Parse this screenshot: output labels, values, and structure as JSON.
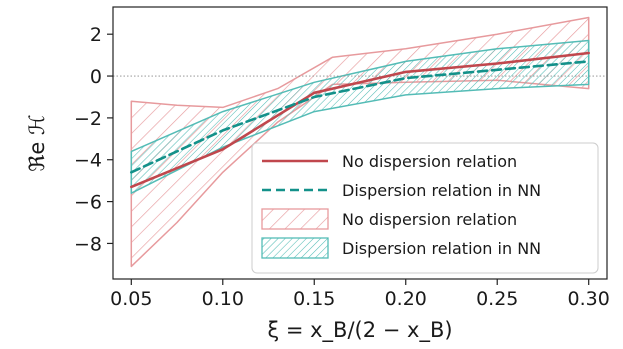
{
  "chart_data": {
    "type": "line",
    "xlabel": "ξ = x_B/(2 − x_B)",
    "ylabel": "ℜe ℋ",
    "xlim": [
      0.04,
      0.31
    ],
    "ylim": [
      -9.7,
      3.3
    ],
    "x_ticks": [
      0.05,
      0.1,
      0.15,
      0.2,
      0.25,
      0.3
    ],
    "y_ticks": [
      2,
      0,
      -2,
      -4,
      -6,
      -8
    ],
    "x_tick_labels": [
      "0.05",
      "0.10",
      "0.15",
      "0.20",
      "0.25",
      "0.30"
    ],
    "y_tick_labels": [
      "2",
      "0",
      "−2",
      "−4",
      "−6",
      "−8"
    ],
    "zero_line": true,
    "grid": false,
    "legend_position": "lower-right",
    "colors": {
      "red": "#c0474d",
      "red_band": "#e79a9d",
      "teal": "#13918a",
      "teal_band": "#54bcb6",
      "zero_line": "#888888"
    },
    "series": [
      {
        "name": "No dispersion relation",
        "kind": "line",
        "style": "solid",
        "color": "red",
        "x": [
          0.05,
          0.1,
          0.15,
          0.2,
          0.25,
          0.3
        ],
        "y": [
          -5.3,
          -3.5,
          -0.8,
          0.2,
          0.6,
          1.1
        ]
      },
      {
        "name": "Dispersion relation in NN",
        "kind": "line",
        "style": "dashed",
        "color": "teal",
        "x": [
          0.05,
          0.1,
          0.15,
          0.2,
          0.25,
          0.3
        ],
        "y": [
          -4.6,
          -2.6,
          -1.0,
          -0.1,
          0.3,
          0.7
        ]
      },
      {
        "name": "No dispersion relation",
        "kind": "band",
        "color": "red_band",
        "x": [
          0.05,
          0.075,
          0.1,
          0.13,
          0.16,
          0.2,
          0.25,
          0.3
        ],
        "upper": [
          -1.2,
          -1.4,
          -1.5,
          -0.6,
          0.9,
          1.3,
          2.0,
          2.8
        ],
        "lower": [
          -9.1,
          -7.0,
          -4.6,
          -2.2,
          -0.4,
          -0.3,
          -0.2,
          -0.6
        ]
      },
      {
        "name": "Dispersion relation in NN",
        "kind": "band",
        "color": "teal_band",
        "x": [
          0.05,
          0.1,
          0.15,
          0.2,
          0.25,
          0.3
        ],
        "upper": [
          -3.6,
          -1.7,
          -0.3,
          0.7,
          1.3,
          1.7
        ],
        "lower": [
          -5.6,
          -3.4,
          -1.7,
          -0.9,
          -0.6,
          -0.4
        ]
      }
    ]
  }
}
